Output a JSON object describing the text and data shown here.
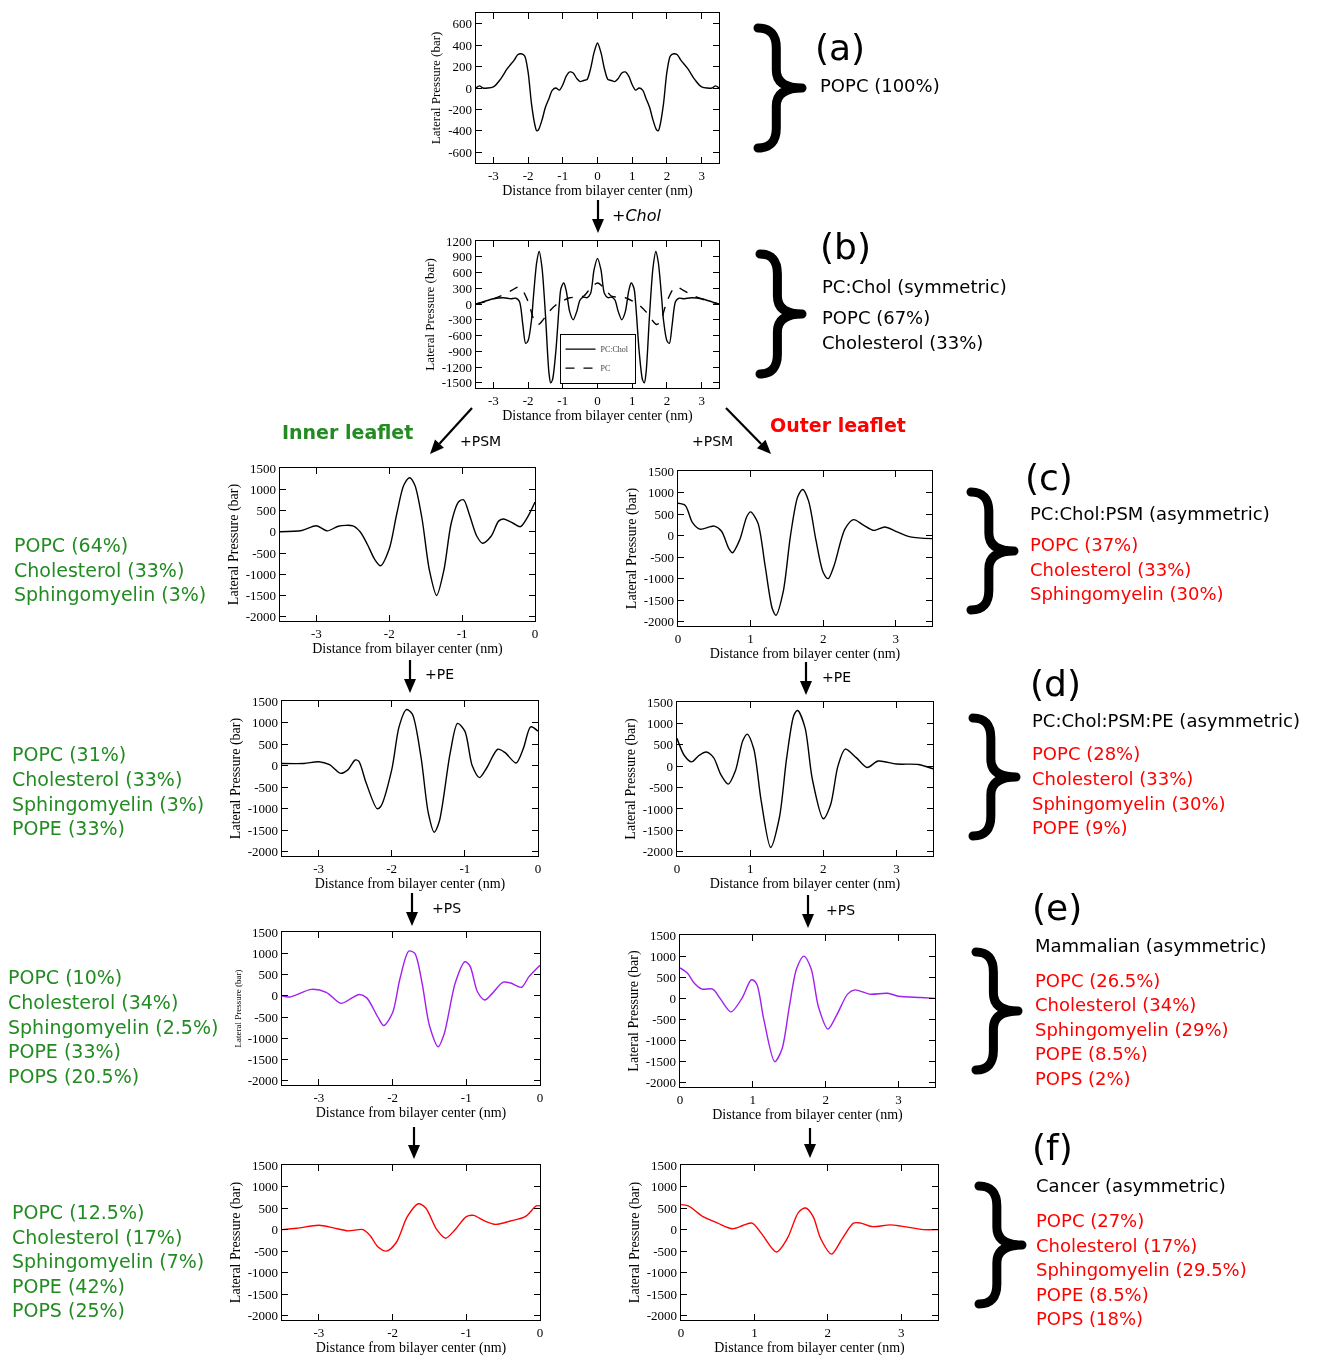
{
  "chart_data": [
    {
      "type": "line",
      "xlabel": "Distance from bilayer center (nm)",
      "ylabel": "Lateral Pressure (bar)",
      "annotations": [
        "(a)",
        "POPC (100%)"
      ],
      "xlim": [
        -3.5,
        3.5
      ],
      "ylim": [
        -700,
        700
      ],
      "xticks": [
        -3,
        -2,
        -1,
        0,
        1,
        2,
        3
      ],
      "yticks": [
        -600,
        -400,
        -200,
        0,
        200,
        400,
        600
      ],
      "x": [
        -3.5,
        -3.4,
        -3.3,
        -3.0,
        -2.8,
        -2.6,
        -2.4,
        -2.3,
        -2.2,
        -2.1,
        -2.0,
        -1.9,
        -1.8,
        -1.75,
        -1.7,
        -1.6,
        -1.5,
        -1.4,
        -1.3,
        -1.2,
        -1.1,
        -1.0,
        -0.9,
        -0.8,
        -0.7,
        -0.6,
        -0.5,
        -0.4,
        -0.3,
        -0.2,
        -0.1,
        0,
        0.1,
        0.2,
        0.3,
        0.4,
        0.5,
        0.6,
        0.7,
        0.8,
        0.9,
        1.0,
        1.1,
        1.2,
        1.3,
        1.4,
        1.5,
        1.6,
        1.7,
        1.75,
        1.8,
        1.9,
        2.0,
        2.1,
        2.2,
        2.3,
        2.4,
        2.6,
        2.8,
        3.0,
        3.3,
        3.4,
        3.5
      ],
      "series": [
        {
          "color": "#000000",
          "values": [
            0,
            20,
            0,
            10,
            80,
            180,
            260,
            310,
            320,
            300,
            150,
            -150,
            -350,
            -400,
            -390,
            -300,
            -180,
            -100,
            -20,
            0,
            -20,
            30,
            110,
            150,
            140,
            90,
            60,
            70,
            80,
            180,
            330,
            420,
            330,
            180,
            80,
            70,
            60,
            90,
            140,
            150,
            110,
            30,
            -20,
            0,
            -20,
            -100,
            -180,
            -300,
            -390,
            -400,
            -350,
            -150,
            150,
            300,
            320,
            310,
            260,
            180,
            80,
            10,
            0,
            20,
            0
          ]
        }
      ]
    },
    {
      "type": "line",
      "xlabel": "Distance from bilayer center (nm)",
      "ylabel": "Lateral Pressure (bar)",
      "annotations": [
        "+Chol",
        "(b)",
        "PC:Chol (symmetric)",
        "POPC (67%)",
        "Cholesterol (33%)"
      ],
      "xlim": [
        -3.5,
        3.5
      ],
      "ylim": [
        -1600,
        1200
      ],
      "xticks": [
        -3,
        -2,
        -1,
        0,
        1,
        2,
        3
      ],
      "yticks": [
        -1500,
        -1200,
        -900,
        -600,
        -300,
        0,
        300,
        600,
        900,
        1200
      ],
      "legend": "bottom",
      "series": [
        {
          "name": "PC:Chol",
          "color": "#000000",
          "x": [
            -3.5,
            -3.3,
            -3.0,
            -2.7,
            -2.5,
            -2.35,
            -2.25,
            -2.15,
            -2.07,
            -2.0,
            -1.9,
            -1.85,
            -1.75,
            -1.68,
            -1.6,
            -1.5,
            -1.4,
            -1.35,
            -1.3,
            -1.2,
            -1.1,
            -1.05,
            -0.97,
            -0.9,
            -0.8,
            -0.7,
            -0.6,
            -0.5,
            -0.4,
            -0.3,
            -0.2,
            -0.1,
            0,
            0.1,
            0.2,
            0.3,
            0.4,
            0.5,
            0.6,
            0.7,
            0.8,
            0.9,
            0.97,
            1.05,
            1.1,
            1.2,
            1.3,
            1.35,
            1.4,
            1.5,
            1.6,
            1.68,
            1.75,
            1.85,
            1.9,
            2.0,
            2.07,
            2.15,
            2.25,
            2.35,
            2.5,
            2.7,
            3.0,
            3.3,
            3.5
          ],
          "values": [
            0,
            40,
            100,
            120,
            100,
            110,
            50,
            -400,
            -750,
            -700,
            -300,
            100,
            800,
            1000,
            700,
            -200,
            -1300,
            -1500,
            -1450,
            -900,
            0,
            300,
            400,
            250,
            -150,
            -300,
            -150,
            80,
            130,
            120,
            200,
            650,
            870,
            650,
            200,
            120,
            130,
            80,
            -150,
            -300,
            -150,
            250,
            400,
            300,
            0,
            -900,
            -1450,
            -1500,
            -1300,
            -200,
            700,
            1000,
            800,
            100,
            -300,
            -700,
            -750,
            -400,
            50,
            110,
            100,
            120,
            100,
            40,
            0
          ]
        },
        {
          "name": "PC",
          "color": "#000000",
          "line_style": "dashed",
          "x": [
            -3.5,
            -3.2,
            -2.8,
            -2.5,
            -2.3,
            -2.2,
            -2.0,
            -1.8,
            -1.7,
            -1.6,
            -1.4,
            -1.2,
            -1.0,
            -0.8,
            -0.6,
            -0.4,
            -0.2,
            0,
            0.2,
            0.4,
            0.6,
            0.8,
            1.0,
            1.2,
            1.4,
            1.6,
            1.7,
            1.8,
            2.0,
            2.2,
            2.3,
            2.5,
            2.8,
            3.2,
            3.5
          ],
          "values": [
            0,
            50,
            150,
            250,
            320,
            300,
            50,
            -350,
            -390,
            -330,
            -150,
            -20,
            60,
            120,
            130,
            150,
            300,
            400,
            300,
            150,
            130,
            120,
            60,
            -20,
            -150,
            -330,
            -390,
            -350,
            50,
            300,
            320,
            250,
            150,
            50,
            0
          ]
        }
      ]
    },
    {
      "type": "line",
      "xlabel": "Distance from bilayer center (nm)",
      "ylabel": "Lateral Pressure (bar)",
      "annotations": [
        "Inner leaflet",
        "+PSM",
        "POPC (64%)",
        "Cholesterol (33%)",
        "Sphingomyelin (3%)"
      ],
      "xlim": [
        -3.5,
        0
      ],
      "ylim": [
        -2100,
        1500
      ],
      "xticks": [
        -3,
        -2,
        -1,
        0
      ],
      "yticks": [
        -2000,
        -1500,
        -1000,
        -500,
        0,
        500,
        1000,
        1500
      ],
      "x": [
        -3.5,
        -3.2,
        -3.0,
        -2.85,
        -2.7,
        -2.5,
        -2.4,
        -2.3,
        -2.2,
        -2.12,
        -2.0,
        -1.9,
        -1.8,
        -1.72,
        -1.65,
        -1.55,
        -1.45,
        -1.35,
        -1.25,
        -1.15,
        -1.05,
        -0.98,
        -0.9,
        -0.8,
        -0.72,
        -0.6,
        -0.5,
        -0.43,
        -0.3,
        -0.2,
        -0.1,
        0
      ],
      "series": [
        {
          "color": "#000000",
          "values": [
            0,
            30,
            140,
            20,
            130,
            140,
            0,
            -300,
            -650,
            -800,
            -400,
            400,
            1100,
            1270,
            1100,
            300,
            -900,
            -1500,
            -900,
            200,
            700,
            750,
            400,
            -100,
            -270,
            -100,
            250,
            300,
            200,
            120,
            350,
            700
          ]
        }
      ]
    },
    {
      "type": "line",
      "xlabel": "Distance from bilayer center (nm)",
      "ylabel": "Lateral Pressure (bar)",
      "annotations": [
        "+PSM",
        "Outer leaflet",
        "(c)",
        "PC:Chol:PSM (asymmetric)",
        "POPC (37%)",
        "Cholesterol (33%)",
        "Sphingomyelin (30%)"
      ],
      "xlim": [
        0,
        3.5
      ],
      "ylim": [
        -2100,
        1500
      ],
      "xticks": [
        0,
        1,
        2,
        3
      ],
      "yticks": [
        -2000,
        -1500,
        -1000,
        -500,
        0,
        500,
        1000,
        1500
      ],
      "x": [
        0,
        0.1,
        0.2,
        0.3,
        0.5,
        0.6,
        0.7,
        0.75,
        0.85,
        0.95,
        1.0,
        1.1,
        1.2,
        1.3,
        1.35,
        1.45,
        1.55,
        1.65,
        1.72,
        1.8,
        1.9,
        2.0,
        2.07,
        2.15,
        2.3,
        2.42,
        2.55,
        2.7,
        2.85,
        3.0,
        3.2,
        3.5
      ],
      "series": [
        {
          "color": "#000000",
          "values": [
            750,
            700,
            300,
            150,
            220,
            100,
            -300,
            -400,
            -100,
            450,
            550,
            300,
            -700,
            -1700,
            -1850,
            -1300,
            0,
            900,
            1070,
            800,
            -100,
            -850,
            -1000,
            -700,
            150,
            370,
            250,
            120,
            200,
            100,
            -30,
            -70
          ]
        }
      ]
    },
    {
      "type": "line",
      "xlabel": "Distance from bilayer center (nm)",
      "ylabel": "Lateral Pressure (bar)",
      "annotations": [
        "+PE",
        "POPC (31%)",
        "Cholesterol (33%)",
        "Sphingomyelin (3%)",
        "POPE (33%)"
      ],
      "xlim": [
        -3.5,
        0
      ],
      "ylim": [
        -2100,
        1500
      ],
      "xticks": [
        -3,
        -2,
        -1,
        0
      ],
      "yticks": [
        -2000,
        -1500,
        -1000,
        -500,
        0,
        500,
        1000,
        1500
      ],
      "x": [
        -3.5,
        -3.2,
        -3.0,
        -2.85,
        -2.7,
        -2.6,
        -2.5,
        -2.45,
        -2.35,
        -2.2,
        -2.15,
        -2.0,
        -1.9,
        -1.8,
        -1.72,
        -1.6,
        -1.5,
        -1.42,
        -1.35,
        -1.2,
        -1.1,
        -1.0,
        -0.9,
        -0.8,
        -0.7,
        -0.55,
        -0.45,
        -0.3,
        -0.2,
        -0.1,
        0
      ],
      "series": [
        {
          "color": "#000000",
          "values": [
            50,
            50,
            90,
            20,
            -180,
            -100,
            130,
            100,
            -400,
            -1000,
            -950,
            -100,
            900,
            1300,
            1200,
            200,
            -1100,
            -1550,
            -1300,
            300,
            980,
            800,
            0,
            -280,
            -50,
            380,
            300,
            60,
            400,
            900,
            800
          ]
        }
      ]
    },
    {
      "type": "line",
      "xlabel": "Distance from bilayer center (nm)",
      "ylabel": "Lateral Pressure (bar)",
      "annotations": [
        "+PE",
        "(d)",
        "PC:Chol:PSM:PE (asymmetric)",
        "POPC (28%)",
        "Cholesterol (33%)",
        "Sphingomyelin (30%)",
        "POPE (9%)"
      ],
      "xlim": [
        0,
        3.5
      ],
      "ylim": [
        -2100,
        1500
      ],
      "xticks": [
        0,
        1,
        2,
        3
      ],
      "yticks": [
        -2000,
        -1500,
        -1000,
        -500,
        0,
        500,
        1000,
        1500
      ],
      "x": [
        0,
        0.1,
        0.2,
        0.3,
        0.4,
        0.5,
        0.6,
        0.7,
        0.8,
        0.9,
        0.96,
        1.05,
        1.15,
        1.28,
        1.4,
        1.5,
        1.6,
        1.65,
        1.75,
        1.85,
        2.0,
        2.1,
        2.2,
        2.3,
        2.45,
        2.6,
        2.75,
        3.0,
        3.3,
        3.5
      ],
      "series": [
        {
          "color": "#000000",
          "values": [
            650,
            250,
            100,
            250,
            330,
            200,
            -200,
            -420,
            -100,
            600,
            750,
            400,
            -800,
            -1900,
            -1200,
            200,
            1200,
            1300,
            900,
            -300,
            -1230,
            -900,
            0,
            400,
            200,
            -30,
            120,
            50,
            40,
            -60
          ]
        }
      ]
    },
    {
      "type": "line",
      "xlabel": "Distance from bilayer center (nm)",
      "ylabel": "Lateral Pressure (bar)",
      "annotations": [
        "+PS",
        "POPC (10%)",
        "Cholesterol (34%)",
        "Sphingomyelin (2.5%)",
        "POPE (33%)",
        "POPS (20.5%)"
      ],
      "xlim": [
        -3.5,
        0
      ],
      "ylim": [
        -2100,
        1500
      ],
      "xticks": [
        -3,
        -2,
        -1,
        0
      ],
      "yticks": [
        -2000,
        -1500,
        -1000,
        -500,
        0,
        500,
        1000,
        1500
      ],
      "x": [
        -3.5,
        -3.4,
        -3.1,
        -2.9,
        -2.7,
        -2.55,
        -2.45,
        -2.35,
        -2.2,
        -2.12,
        -2.0,
        -1.9,
        -1.78,
        -1.7,
        -1.6,
        -1.5,
        -1.38,
        -1.3,
        -1.15,
        -1.02,
        -0.95,
        -0.85,
        -0.75,
        -0.65,
        -0.5,
        -0.4,
        -0.25,
        -0.15,
        0
      ],
      "series": [
        {
          "color": "#a020f0",
          "values": [
            0,
            -30,
            150,
            80,
            -180,
            -50,
            30,
            -50,
            -500,
            -700,
            -400,
            400,
            1050,
            1000,
            300,
            -700,
            -1200,
            -900,
            300,
            800,
            700,
            100,
            -100,
            50,
            320,
            300,
            200,
            450,
            720
          ]
        }
      ]
    },
    {
      "type": "line",
      "xlabel": "Distance from bilayer center (nm)",
      "ylabel": "Lateral Pressure (bar)",
      "annotations": [
        "+PS",
        "(e)",
        "Mammalian (asymmetric)",
        "POPC (26.5%)",
        "Cholesterol (34%)",
        "Sphingomyelin (29%)",
        "POPE (8.5%)",
        "POPS (2%)"
      ],
      "xlim": [
        0,
        3.5
      ],
      "ylim": [
        -2100,
        1500
      ],
      "xticks": [
        0,
        1,
        2,
        3
      ],
      "yticks": [
        -2000,
        -1500,
        -1000,
        -500,
        0,
        500,
        1000,
        1500
      ],
      "x": [
        0,
        0.1,
        0.2,
        0.3,
        0.45,
        0.55,
        0.7,
        0.85,
        0.98,
        1.05,
        1.15,
        1.3,
        1.4,
        1.5,
        1.6,
        1.7,
        1.8,
        1.9,
        2.03,
        2.15,
        2.3,
        2.4,
        2.6,
        2.85,
        3.0,
        3.3,
        3.5
      ],
      "series": [
        {
          "color": "#a020f0",
          "values": [
            720,
            600,
            350,
            220,
            220,
            0,
            -320,
            0,
            440,
            350,
            -500,
            -1500,
            -1200,
            -200,
            700,
            1000,
            700,
            -200,
            -730,
            -400,
            100,
            200,
            100,
            120,
            50,
            20,
            0
          ]
        }
      ]
    },
    {
      "type": "line",
      "xlabel": "Distance from bilayer center (nm)",
      "ylabel": "Lateral Pressure (bar)",
      "annotations": [
        "POPC (12.5%)",
        "Cholesterol (17%)",
        "Sphingomyelin (7%)",
        "POPE (42%)",
        "POPS (25%)"
      ],
      "xlim": [
        -3.5,
        0
      ],
      "ylim": [
        -2100,
        1500
      ],
      "xticks": [
        -3,
        -2,
        -1,
        0
      ],
      "yticks": [
        -2000,
        -1500,
        -1000,
        -500,
        0,
        500,
        1000,
        1500
      ],
      "x": [
        -3.5,
        -3.3,
        -3.0,
        -2.8,
        -2.6,
        -2.4,
        -2.3,
        -2.2,
        -2.08,
        -1.95,
        -1.8,
        -1.65,
        -1.55,
        -1.4,
        -1.28,
        -1.15,
        -1.0,
        -0.9,
        -0.75,
        -0.6,
        -0.4,
        -0.2,
        -0.05,
        0
      ],
      "series": [
        {
          "color": "#ff0000",
          "values": [
            0,
            30,
            100,
            40,
            -30,
            0,
            -150,
            -400,
            -500,
            -300,
            300,
            600,
            500,
            0,
            -200,
            0,
            300,
            330,
            200,
            120,
            200,
            300,
            550,
            550
          ]
        }
      ]
    },
    {
      "type": "line",
      "xlabel": "Distance from bilayer center (nm)",
      "ylabel": "Lateral Pressure (bar)",
      "annotations": [
        "(f)",
        "Cancer (asymmetric)",
        "POPC (27%)",
        "Cholesterol (17%)",
        "Sphingomyelin (29.5%)",
        "POPE (8.5%)",
        "POPS (18%)"
      ],
      "xlim": [
        0,
        3.5
      ],
      "ylim": [
        -2100,
        1500
      ],
      "xticks": [
        0,
        1,
        2,
        3
      ],
      "yticks": [
        -2000,
        -1500,
        -1000,
        -500,
        0,
        500,
        1000,
        1500
      ],
      "x": [
        0,
        0.1,
        0.3,
        0.5,
        0.7,
        0.85,
        0.97,
        1.1,
        1.3,
        1.45,
        1.6,
        1.7,
        1.8,
        1.9,
        2.05,
        2.2,
        2.35,
        2.45,
        2.6,
        2.85,
        3.0,
        3.3,
        3.5
      ],
      "series": [
        {
          "color": "#ff0000",
          "values": [
            580,
            550,
            300,
            150,
            20,
            100,
            150,
            -100,
            -520,
            -200,
            400,
            500,
            300,
            -200,
            -570,
            -200,
            150,
            150,
            70,
            110,
            80,
            0,
            0
          ]
        }
      ]
    }
  ]
}
